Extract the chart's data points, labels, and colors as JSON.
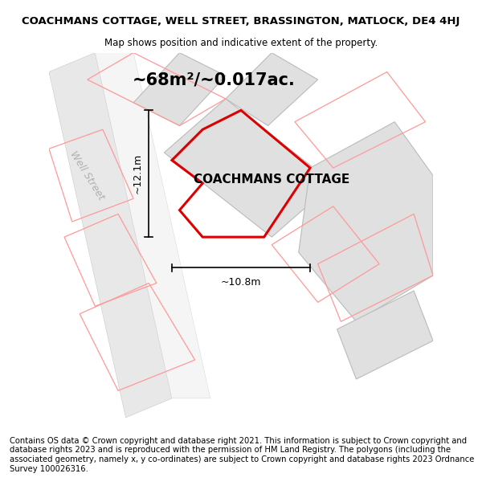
{
  "title_line1": "COACHMANS COTTAGE, WELL STREET, BRASSINGTON, MATLOCK, DE4 4HJ",
  "title_line2": "Map shows position and indicative extent of the property.",
  "area_text": "~68m²/~0.017ac.",
  "property_label": "COACHMANS COTTAGE",
  "dim_height": "~12.1m",
  "dim_width": "~10.8m",
  "street_label": "Well Street",
  "footer_text": "Contains OS data © Crown copyright and database right 2021. This information is subject to Crown copyright and database rights 2023 and is reproduced with the permission of HM Land Registry. The polygons (including the associated geometry, namely x, y co-ordinates) are subject to Crown copyright and database rights 2023 Ordnance Survey 100026316.",
  "bg_color": "#ffffff",
  "map_bg": "#ffffff",
  "property_color": "#dd0000",
  "parcel_color": "#ff9999",
  "building_fill": "#e0e0e0",
  "building_edge": "#bbbbbb",
  "road_fill": "#e8e8e8",
  "road_edge": "#d0d0d0",
  "title_fontsize": 9.5,
  "subtitle_fontsize": 8.5,
  "area_fontsize": 15,
  "label_fontsize": 11,
  "footer_fontsize": 7.2,
  "street_fontsize": 9
}
